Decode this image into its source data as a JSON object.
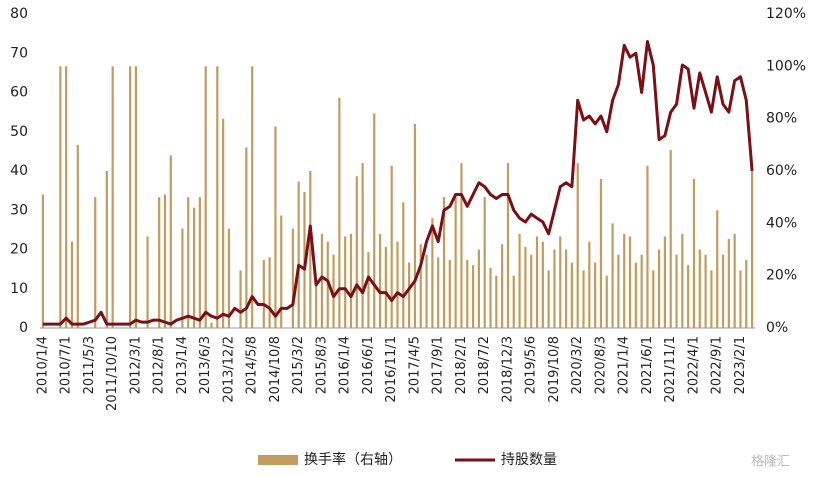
{
  "chart_data": {
    "type": "bar_line",
    "categories": [
      "2010/1/4",
      null,
      null,
      null,
      "2010/7/1",
      null,
      null,
      null,
      "2011/5/3",
      null,
      null,
      null,
      "2011/10/10",
      null,
      null,
      null,
      "2012/3/1",
      null,
      null,
      null,
      "2012/8/1",
      null,
      null,
      null,
      "2013/1/4",
      null,
      null,
      null,
      "2013/6/3",
      null,
      null,
      null,
      "2013/12/2",
      null,
      null,
      null,
      "2014/5/8",
      null,
      null,
      null,
      "2014/10/8",
      null,
      null,
      null,
      "2015/3/2",
      null,
      null,
      null,
      "2015/8/3",
      null,
      null,
      null,
      "2016/1/4",
      null,
      null,
      null,
      "2016/6/1",
      null,
      null,
      null,
      "2016/11/1",
      null,
      null,
      null,
      "2017/4/5",
      null,
      null,
      null,
      "2017/9/1",
      null,
      null,
      null,
      "2018/2/1",
      null,
      null,
      null,
      "2018/7/2",
      null,
      null,
      null,
      "2018/12/3",
      null,
      null,
      null,
      "2019/5/6",
      null,
      null,
      null,
      "2019/10/8",
      null,
      null,
      null,
      "2020/3/2",
      null,
      null,
      null,
      "2020/8/3",
      null,
      null,
      null,
      "2021/1/4",
      null,
      null,
      null,
      "2021/6/1",
      null,
      null,
      null,
      "2021/11/1",
      null,
      null,
      null,
      "2022/4/1",
      null,
      null,
      null,
      "2022/9/1",
      null,
      null,
      null,
      "2023/2/1",
      null,
      null
    ],
    "series": [
      {
        "name": "换手率（右轴）",
        "kind": "bar",
        "axis": "y2",
        "color": "#c39b5f",
        "values": [
          51,
          0,
          0,
          100,
          100,
          33,
          70,
          0,
          0,
          50,
          0,
          60,
          100,
          0,
          0,
          100,
          100,
          0,
          35,
          0,
          50,
          51,
          66,
          0,
          38,
          50,
          46,
          50,
          100,
          2,
          100,
          80,
          38,
          0,
          22,
          69,
          100,
          0,
          26,
          27,
          77,
          43,
          0,
          38,
          56,
          52,
          60,
          16,
          36,
          33,
          28,
          88,
          35,
          36,
          58,
          63,
          29,
          82,
          36,
          31,
          62,
          33,
          48,
          25,
          78,
          32,
          28,
          42,
          27,
          50,
          26,
          50,
          63,
          26,
          24,
          30,
          50,
          23,
          20,
          32,
          63,
          20,
          36,
          31,
          28,
          35,
          33,
          22,
          30,
          35,
          30,
          25,
          63,
          22,
          33,
          25,
          57,
          20,
          40,
          28,
          36,
          35,
          25,
          28,
          62,
          22,
          30,
          35,
          68,
          28,
          36,
          24,
          57,
          30,
          28,
          22,
          45,
          28,
          34,
          36,
          22,
          26,
          60
        ]
      },
      {
        "name": "持股数量",
        "kind": "line",
        "axis": "y",
        "color": "#7b0f16",
        "values": [
          1,
          1,
          1,
          1,
          2.5,
          1,
          1,
          1,
          1.5,
          2,
          4,
          1,
          1,
          1,
          1,
          1,
          2,
          1.5,
          1.5,
          2,
          2,
          1.5,
          1,
          2,
          2.5,
          3,
          2.5,
          2,
          4,
          3,
          2.5,
          3.5,
          3,
          5,
          4,
          5,
          8,
          6,
          6,
          5,
          3,
          5,
          5,
          6,
          16,
          15,
          26,
          11,
          13,
          12,
          8,
          10,
          10,
          8,
          11,
          9,
          13,
          11,
          9,
          9,
          7,
          9,
          8,
          10,
          12,
          16,
          22,
          26,
          22,
          30,
          31,
          34,
          34,
          31,
          34,
          37,
          36,
          34,
          33,
          34,
          34,
          30,
          28,
          27,
          29,
          28,
          27,
          24,
          30,
          36,
          37,
          36,
          58,
          53,
          54,
          52,
          54,
          50,
          58,
          62,
          72,
          69,
          70,
          60,
          73,
          67,
          48,
          49,
          55,
          57,
          67,
          66,
          56,
          65,
          60,
          55,
          64,
          57,
          55,
          63,
          64,
          58,
          40
        ]
      }
    ],
    "ylim": [
      0,
      80
    ],
    "yticks": [
      0,
      10,
      20,
      30,
      40,
      50,
      60,
      70,
      80
    ],
    "y2lim": [
      0,
      120
    ],
    "y2ticks": [
      {
        "value": 0,
        "label": "0%"
      },
      {
        "value": 20,
        "label": "20%"
      },
      {
        "value": 40,
        "label": "40%"
      },
      {
        "value": 60,
        "label": "60%"
      },
      {
        "value": 80,
        "label": "80%"
      },
      {
        "value": 100,
        "label": "100%"
      },
      {
        "value": 120,
        "label": "120%"
      }
    ],
    "legend": "bottom",
    "watermark": "格隆汇"
  }
}
